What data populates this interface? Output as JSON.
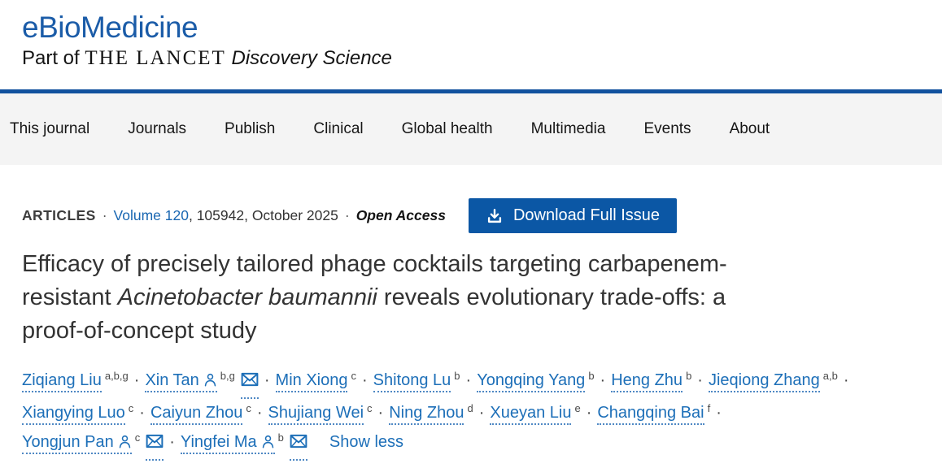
{
  "masthead": {
    "logo": "eBioMedicine",
    "tagline_prefix": "Part of ",
    "tagline_brand": "THE LANCET",
    "tagline_suffix": " Discovery Science"
  },
  "nav": {
    "items": [
      {
        "id": "this-journal",
        "label": "This journal"
      },
      {
        "id": "journals",
        "label": "Journals"
      },
      {
        "id": "publish",
        "label": "Publish"
      },
      {
        "id": "clinical",
        "label": "Clinical"
      },
      {
        "id": "global-health",
        "label": "Global health"
      },
      {
        "id": "multimedia",
        "label": "Multimedia"
      },
      {
        "id": "events",
        "label": "Events"
      },
      {
        "id": "about",
        "label": "About"
      }
    ]
  },
  "article_meta": {
    "section_label": "ARTICLES",
    "separator": "·",
    "volume_link": "Volume 120",
    "issue_info": ", 105942, October 2025",
    "access_label": "Open Access",
    "download_button": "Download Full Issue"
  },
  "title": {
    "lines": [
      [
        {
          "t": "Efficacy of precisely tailored phage cocktails targeting carbapenem-",
          "i": false
        }
      ],
      [
        {
          "t": "resistant ",
          "i": false
        },
        {
          "t": "Acinetobacter baumannii",
          "i": true
        },
        {
          "t": " reveals evolutionary trade-offs: a",
          "i": false
        }
      ],
      [
        {
          "t": "proof-of-concept study",
          "i": false
        }
      ]
    ]
  },
  "authors": {
    "lines": [
      [
        {
          "name": "Ziqiang Liu",
          "sup": "a,b,g",
          "person": false,
          "mail": false,
          "sep": true
        },
        {
          "name": "Xin Tan",
          "sup": "b,g",
          "person": true,
          "mail": true,
          "sep": true
        },
        {
          "name": "Min Xiong",
          "sup": "c",
          "person": false,
          "mail": false,
          "sep": true
        },
        {
          "name": "Shitong Lu",
          "sup": "b",
          "person": false,
          "mail": false,
          "sep": true
        },
        {
          "name": "Yongqing Yang",
          "sup": "b",
          "person": false,
          "mail": false,
          "sep": true
        },
        {
          "name": "Heng Zhu",
          "sup": "b",
          "person": false,
          "mail": false,
          "sep": true
        },
        {
          "name": "Jieqiong Zhang",
          "sup": "a,b",
          "person": false,
          "mail": false,
          "sep": true
        }
      ],
      [
        {
          "name": "Xiangying Luo",
          "sup": "c",
          "person": false,
          "mail": false,
          "sep": true
        },
        {
          "name": "Caiyun Zhou",
          "sup": "c",
          "person": false,
          "mail": false,
          "sep": true
        },
        {
          "name": "Shujiang Wei",
          "sup": "c",
          "person": false,
          "mail": false,
          "sep": true
        },
        {
          "name": "Ning Zhou",
          "sup": "d",
          "person": false,
          "mail": false,
          "sep": true
        },
        {
          "name": "Xueyan Liu",
          "sup": "e",
          "person": false,
          "mail": false,
          "sep": true
        },
        {
          "name": "Changqing Bai",
          "sup": "f",
          "person": false,
          "mail": false,
          "sep": true
        }
      ],
      [
        {
          "name": "Yongjun Pan",
          "sup": "c",
          "person": true,
          "mail": true,
          "sep": true
        },
        {
          "name": "Yingfei Ma",
          "sup": "b",
          "person": true,
          "mail": true,
          "sep": false
        }
      ]
    ],
    "show_less": "Show less"
  },
  "colors": {
    "logo_blue": "#1b5ca8",
    "divider_blue": "#11519e",
    "nav_bg": "#f4f4f4",
    "button_blue": "#0b57a5",
    "link_blue": "#1d6fb8"
  },
  "icons": {
    "download": "download-icon",
    "person": "person-icon",
    "mail": "envelope-icon"
  }
}
